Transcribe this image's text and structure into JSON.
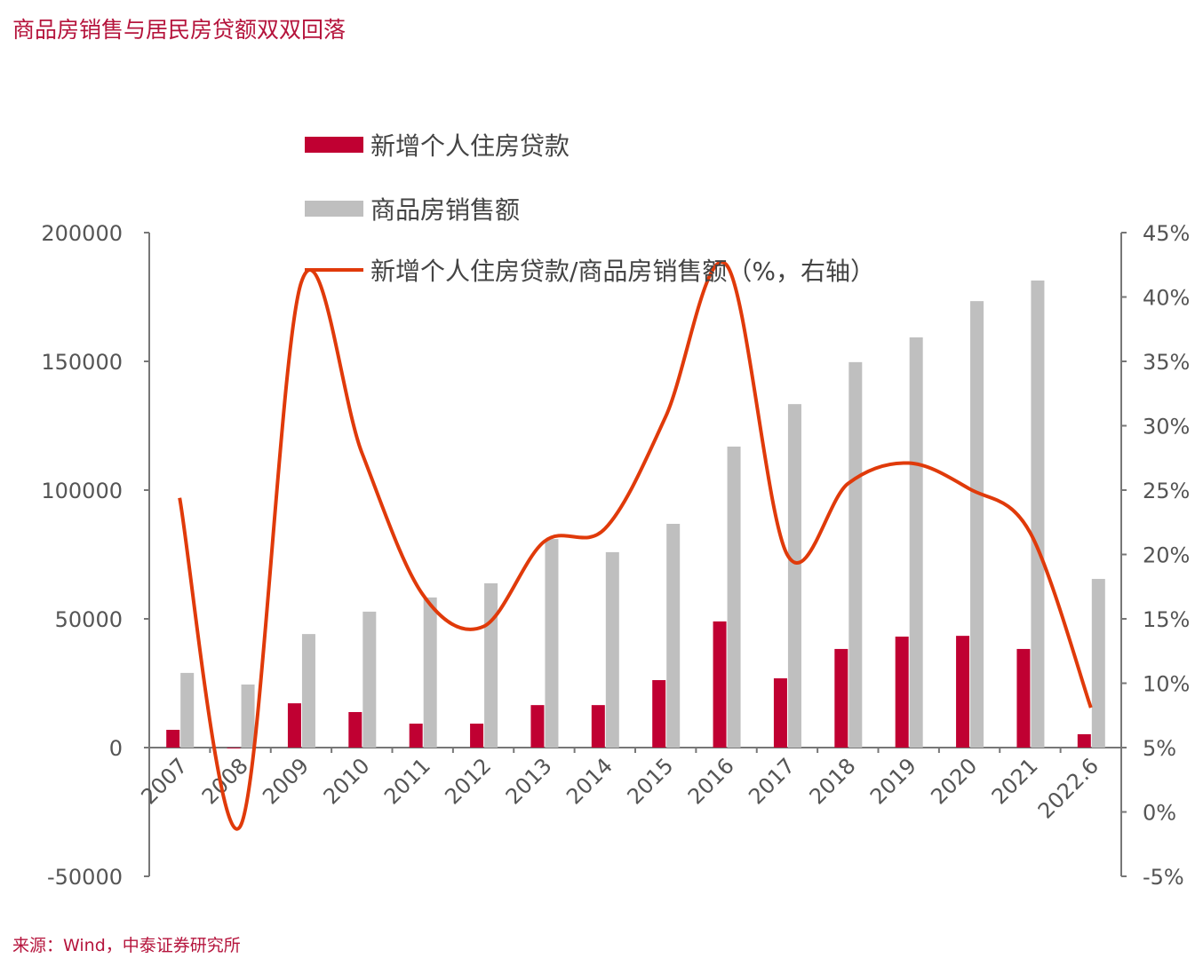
{
  "title": "商品房销售与居民房贷额双双回落",
  "source": "来源：Wind，中泰证券研究所",
  "chart_data": {
    "type": "bar+line",
    "categories": [
      "2007",
      "2008",
      "2009",
      "2010",
      "2011",
      "2012",
      "2013",
      "2014",
      "2015",
      "2016",
      "2017",
      "2018",
      "2019",
      "2020",
      "2021",
      "2022.6"
    ],
    "series": [
      {
        "name": "新增个人住房贷款",
        "type": "bar",
        "axis": "left",
        "color": "#c00032",
        "values": [
          6900,
          -300,
          17200,
          13800,
          9300,
          9300,
          16500,
          16500,
          26200,
          49000,
          26900,
          38300,
          43100,
          43400,
          38300,
          5200
        ]
      },
      {
        "name": "商品房销售额",
        "type": "bar",
        "axis": "left",
        "color": "#bfbfbf",
        "values": [
          29000,
          24500,
          44100,
          52800,
          58300,
          63800,
          81000,
          75900,
          86900,
          116900,
          133400,
          149700,
          159300,
          173400,
          181400,
          65500
        ]
      },
      {
        "name": "新增个人住房贷款/商品房销售额（%，右轴）",
        "type": "line",
        "axis": "right",
        "color": "#e03a0a",
        "values": [
          24.4,
          -1.1,
          41.1,
          27.9,
          16.9,
          14.4,
          21.0,
          22.0,
          30.7,
          42.5,
          20.0,
          25.5,
          27.1,
          25.1,
          21.7,
          8.1
        ]
      }
    ],
    "left_axis": {
      "range": [
        -50000,
        200000
      ],
      "ticks": [
        "-50000",
        "0",
        "50000",
        "100000",
        "150000",
        "200000"
      ]
    },
    "right_axis": {
      "range": [
        -5,
        45
      ],
      "ticks": [
        "-5%",
        "0%",
        "5%",
        "10%",
        "15%",
        "20%",
        "25%",
        "30%",
        "35%",
        "40%",
        "45%"
      ]
    },
    "legend": "top-center",
    "grid": false
  }
}
